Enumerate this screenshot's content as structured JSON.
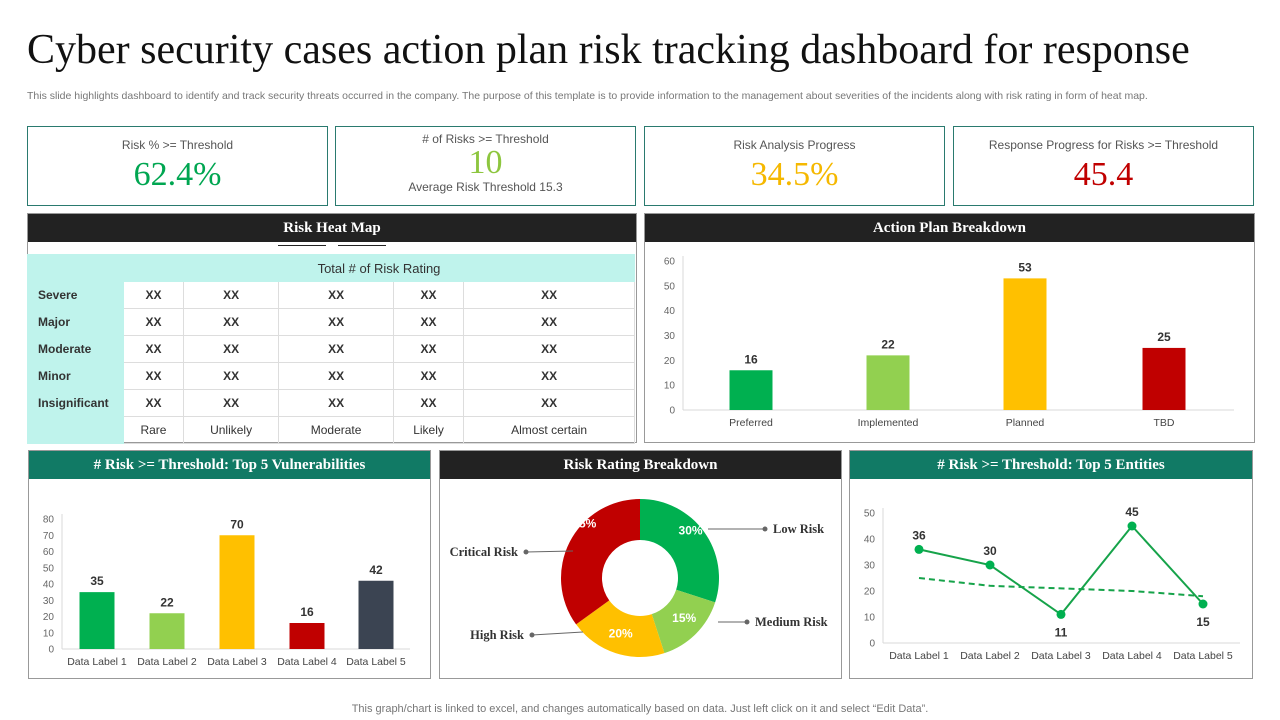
{
  "title": "Cyber security cases action plan risk tracking dashboard for response",
  "description": "This slide highlights dashboard to identify and track security threats occurred in the company. The purpose of this template is to provide information to the management about severities of the incidents along with risk rating in form of heat map.",
  "kpis": [
    {
      "label": "Risk % >= Threshold",
      "value": "62.4%",
      "color": "#00a651"
    },
    {
      "label": "# of Risks >= Threshold",
      "value": "10",
      "sub": "Average Risk Threshold 15.3",
      "color": "#8dc63f"
    },
    {
      "label": "Risk Analysis Progress",
      "value": "34.5%",
      "color": "#f5b800"
    },
    {
      "label": "Response Progress for Risks >= Threshold",
      "value": "45.4",
      "color": "#c00000"
    }
  ],
  "heatmap": {
    "title": "Risk Heat Map",
    "header": "Total # of Risk Rating",
    "rows": [
      "Severe",
      "Major",
      "Moderate",
      "Minor",
      "Insignificant"
    ],
    "columns": [
      "Rare",
      "Unlikely",
      "Moderate",
      "Likely",
      "Almost certain"
    ],
    "cells": [
      [
        "XX",
        "XX",
        "XX",
        "XX",
        "XX"
      ],
      [
        "XX",
        "XX",
        "XX",
        "XX",
        "XX"
      ],
      [
        "XX",
        "XX",
        "XX",
        "XX",
        "XX"
      ],
      [
        "XX",
        "XX",
        "XX",
        "XX",
        "XX"
      ],
      [
        "XX",
        "XX",
        "XX",
        "XX",
        "XX"
      ]
    ]
  },
  "panels": {
    "action": "Action Plan Breakdown",
    "vuln": "# Risk >= Threshold:  Top 5 Vulnerabilities",
    "rating": "Risk Rating Breakdown",
    "entities": "# Risk >= Threshold:  Top 5 Entities"
  },
  "footer": "This graph/chart is linked to excel,  and changes automatically based on data. Just left click on it and select “Edit Data”.",
  "chart_data": [
    {
      "type": "bar",
      "categories": [
        "Preferred",
        "Implemented",
        "Planned",
        "TBD"
      ],
      "values": [
        16,
        22,
        53,
        25
      ],
      "colors": [
        "#00b050",
        "#92d050",
        "#ffc000",
        "#c00000"
      ],
      "ylim": [
        0,
        60
      ],
      "yticks": [
        0,
        10,
        20,
        30,
        40,
        50,
        60
      ]
    },
    {
      "type": "bar",
      "categories": [
        "Data Label 1",
        "Data Label 2",
        "Data Label 3",
        "Data Label 4",
        "Data Label 5"
      ],
      "values": [
        35,
        22,
        70,
        16,
        42
      ],
      "colors": [
        "#00b050",
        "#92d050",
        "#ffc000",
        "#c00000",
        "#3b4452"
      ],
      "ylim": [
        0,
        80
      ],
      "yticks": [
        0,
        10,
        20,
        30,
        40,
        50,
        60,
        70,
        80
      ]
    },
    {
      "type": "pie",
      "donut": true,
      "labels": [
        "Low Risk",
        "Medium Risk",
        "High Risk",
        "Critical Risk"
      ],
      "values": [
        30,
        15,
        20,
        35
      ],
      "value_labels": [
        "30%",
        "15%",
        "20%",
        "35%"
      ],
      "colors": [
        "#00b050",
        "#92d050",
        "#ffc000",
        "#c00000"
      ]
    },
    {
      "type": "line",
      "categories": [
        "Data Label 1",
        "Data Label 2",
        "Data Label 3",
        "Data Label 4",
        "Data Label 5"
      ],
      "values": [
        36,
        30,
        11,
        45,
        15
      ],
      "trend": [
        25,
        22,
        21,
        20,
        18
      ],
      "color": "#16a34a",
      "ylim": [
        0,
        50
      ],
      "yticks": [
        0,
        10,
        20,
        30,
        40,
        50
      ]
    }
  ]
}
